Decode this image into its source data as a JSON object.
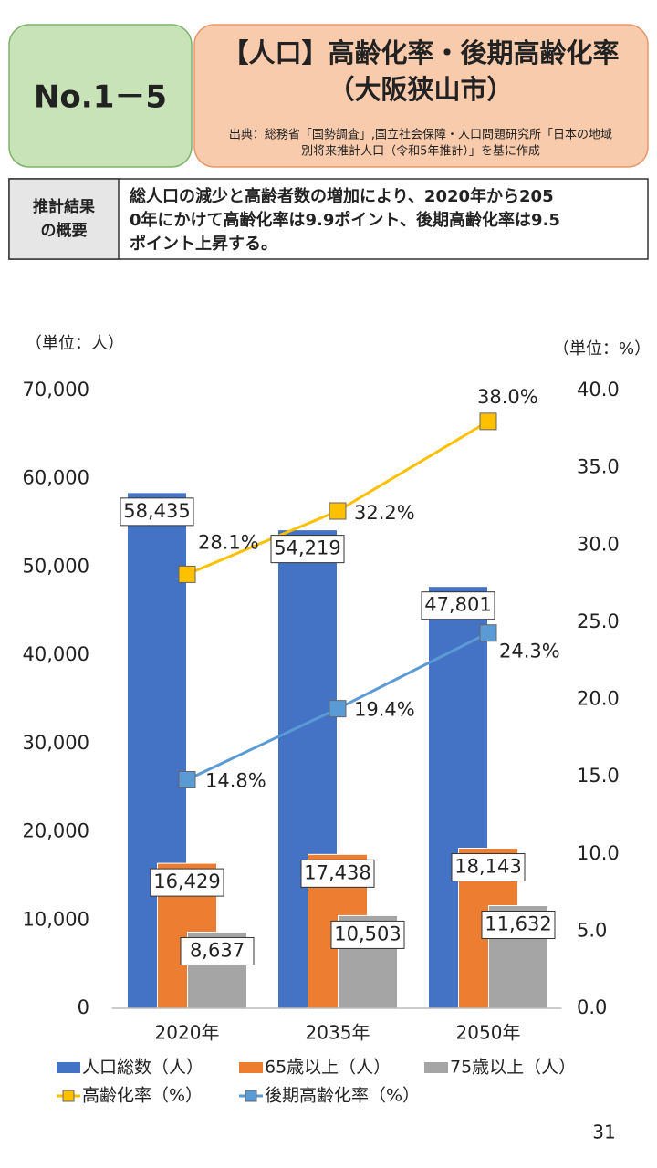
{
  "header": {
    "number": "No.1－5",
    "title": [
      "【人口】高齢化率・後期高齢化率",
      "（大阪狭山市）"
    ],
    "source": [
      "出典：総務省「国勢調査」,国立社会保障・人口問題研究所「日本の地域",
      "別将来推計人口（令和5年推計）」を基に作成"
    ]
  },
  "summary": {
    "label": [
      "推計結果",
      "の概要"
    ],
    "text": [
      "総人口の減少と高齢者数の増加により、2020年から205",
      "0年にかけて高齢化率は9.9ポイント、後期高齢化率は9.5",
      "ポイント上昇する。"
    ]
  },
  "chart_data": {
    "type": "bar-line",
    "y_unit": "（単位：人）",
    "y2_unit": "（単位：%）",
    "categories": [
      "2020年",
      "2035年",
      "2050年"
    ],
    "series": [
      {
        "name": "人口総数（人）",
        "type": "bar",
        "color": "#4472c4",
        "values": [
          58435,
          54219,
          47801
        ],
        "value_labels": [
          "58,435",
          "54,219",
          "47,801"
        ]
      },
      {
        "name": "65歳以上（人）",
        "type": "bar",
        "color": "#ed7d31",
        "values": [
          16429,
          17438,
          18143
        ],
        "value_labels": [
          "16,429",
          "17,438",
          "18,143"
        ]
      },
      {
        "name": "75歳以上（人）",
        "type": "bar",
        "color": "#a5a5a5",
        "values": [
          8637,
          10503,
          11632
        ],
        "value_labels": [
          "8,637",
          "10,503",
          "11,632"
        ]
      },
      {
        "name": "高齢化率（%）",
        "type": "line",
        "axis": "y2",
        "color": "#ffc000",
        "values": [
          28.1,
          32.2,
          38.0
        ],
        "value_labels": [
          "28.1%",
          "32.2%",
          "38.0%"
        ]
      },
      {
        "name": "後期高齢化率（%）",
        "type": "line",
        "axis": "y2",
        "color": "#5b9bd5",
        "values": [
          14.8,
          19.4,
          24.3
        ],
        "value_labels": [
          "14.8%",
          "19.4%",
          "24.3%"
        ]
      }
    ],
    "ylim": [
      0,
      70000
    ],
    "yticks": [
      0,
      {
        "value": 10000,
        "label": "10,000"
      },
      {
        "value": 20000,
        "label": "20,000"
      },
      {
        "value": 30000,
        "label": "30,000"
      },
      {
        "value": 40000,
        "label": "40,000"
      },
      {
        "value": 50000,
        "label": "50,000"
      },
      {
        "value": 60000,
        "label": "60,000"
      },
      {
        "value": 70000,
        "label": "70,000"
      }
    ],
    "y2lim": [
      0,
      40
    ],
    "y2ticks": [
      {
        "value": 0,
        "label": "0.0"
      },
      {
        "value": 5,
        "label": "5.0"
      },
      {
        "value": 10,
        "label": "10.0"
      },
      {
        "value": 15,
        "label": "15.0"
      },
      {
        "value": 20,
        "label": "20.0"
      },
      {
        "value": 25,
        "label": "25.0"
      },
      {
        "value": 30,
        "label": "30.0"
      },
      {
        "value": 35,
        "label": "35.0"
      },
      {
        "value": 40,
        "label": "40.0"
      }
    ]
  },
  "page_number": "31"
}
